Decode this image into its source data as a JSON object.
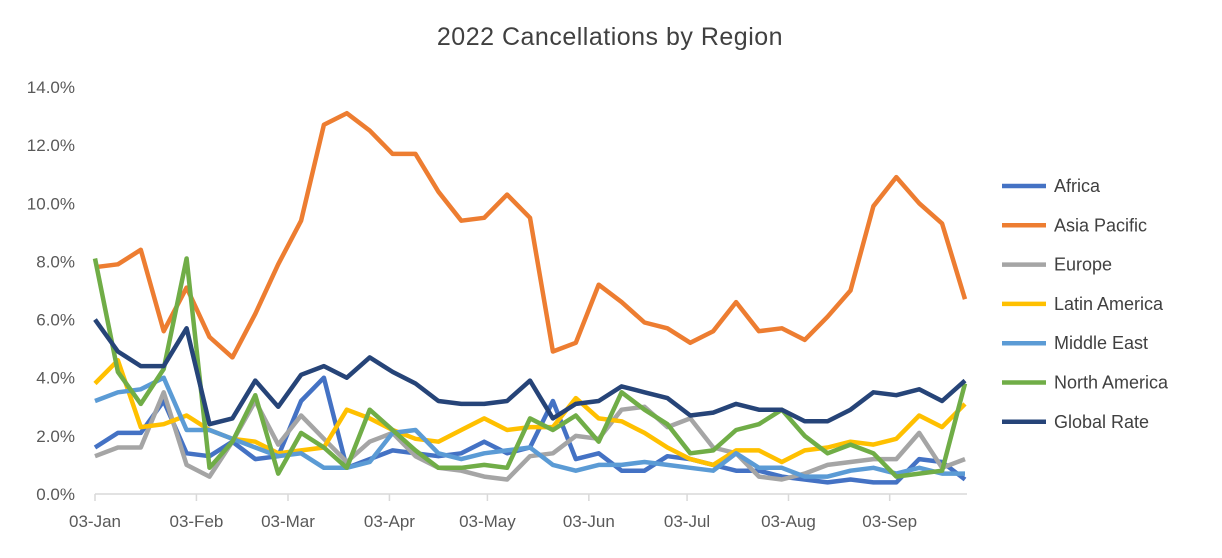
{
  "chart_data": {
    "type": "line",
    "title": "2022 Cancellations by Region",
    "xlabel": "",
    "ylabel": "",
    "ylim": [
      0,
      14
    ],
    "y_ticks": [
      "0.0%",
      "2.0%",
      "4.0%",
      "6.0%",
      "8.0%",
      "10.0%",
      "12.0%",
      "14.0%"
    ],
    "x_ticks": [
      {
        "label": "03-Jan",
        "week": 0
      },
      {
        "label": "03-Feb",
        "week": 4.43
      },
      {
        "label": "03-Mar",
        "week": 8.43
      },
      {
        "label": "03-Apr",
        "week": 12.86
      },
      {
        "label": "03-May",
        "week": 17.14
      },
      {
        "label": "03-Jun",
        "week": 21.57
      },
      {
        "label": "03-Jul",
        "week": 25.86
      },
      {
        "label": "03-Aug",
        "week": 30.29
      },
      {
        "label": "03-Sep",
        "week": 34.71
      }
    ],
    "x_unit": "weeks since 03-Jan",
    "n_points": 39,
    "grid": false,
    "legend_position": "right",
    "series": [
      {
        "name": "Africa",
        "color": "#4472C4",
        "values": [
          1.6,
          2.1,
          2.1,
          3.2,
          1.4,
          1.3,
          1.8,
          1.2,
          1.3,
          3.2,
          4.0,
          0.9,
          1.2,
          1.5,
          1.4,
          1.3,
          1.4,
          1.8,
          1.4,
          1.6,
          3.2,
          1.2,
          1.4,
          0.8,
          0.8,
          1.3,
          1.2,
          1.0,
          0.8,
          0.8,
          0.6,
          0.5,
          0.4,
          0.5,
          0.4,
          0.4,
          1.2,
          1.1,
          0.5
        ]
      },
      {
        "name": "Asia Pacific",
        "color": "#ED7D31",
        "values": [
          7.8,
          7.9,
          8.4,
          5.6,
          7.1,
          5.4,
          4.7,
          6.2,
          7.9,
          9.4,
          12.7,
          13.1,
          12.5,
          11.7,
          11.7,
          10.4,
          9.4,
          9.5,
          10.3,
          9.5,
          4.9,
          5.2,
          7.2,
          6.6,
          5.9,
          5.7,
          5.2,
          5.6,
          6.6,
          5.6,
          5.7,
          5.3,
          6.1,
          7.0,
          9.9,
          10.9,
          10.0,
          9.3,
          6.7
        ]
      },
      {
        "name": "Europe",
        "color": "#A5A5A5",
        "values": [
          1.3,
          1.6,
          1.6,
          3.5,
          1.0,
          0.6,
          1.8,
          3.2,
          1.7,
          2.7,
          1.9,
          1.1,
          1.8,
          2.1,
          1.3,
          0.9,
          0.8,
          0.6,
          0.5,
          1.3,
          1.4,
          2.0,
          1.9,
          2.9,
          3.0,
          2.3,
          2.6,
          1.6,
          1.4,
          0.6,
          0.5,
          0.7,
          1.0,
          1.1,
          1.2,
          1.2,
          2.1,
          0.9,
          1.2
        ]
      },
      {
        "name": "Latin America",
        "color": "#FFC000",
        "values": [
          3.8,
          4.6,
          2.3,
          2.4,
          2.7,
          2.2,
          1.9,
          1.8,
          1.4,
          1.5,
          1.6,
          2.9,
          2.6,
          2.2,
          1.9,
          1.8,
          2.2,
          2.6,
          2.2,
          2.3,
          2.3,
          3.3,
          2.6,
          2.5,
          2.1,
          1.6,
          1.2,
          1.0,
          1.5,
          1.5,
          1.1,
          1.5,
          1.6,
          1.8,
          1.7,
          1.9,
          2.7,
          2.3,
          3.1
        ]
      },
      {
        "name": "Middle East",
        "color": "#5B9BD5",
        "values": [
          3.2,
          3.5,
          3.6,
          4.0,
          2.2,
          2.2,
          1.9,
          1.6,
          1.3,
          1.4,
          0.9,
          0.9,
          1.1,
          2.1,
          2.2,
          1.4,
          1.2,
          1.4,
          1.5,
          1.6,
          1.0,
          0.8,
          1.0,
          1.0,
          1.1,
          1.0,
          0.9,
          0.8,
          1.4,
          0.9,
          0.9,
          0.6,
          0.6,
          0.8,
          0.9,
          0.7,
          0.9,
          0.7,
          0.7
        ]
      },
      {
        "name": "North America",
        "color": "#70AD47",
        "values": [
          8.1,
          4.2,
          3.1,
          4.3,
          8.1,
          0.9,
          1.8,
          3.4,
          0.7,
          2.1,
          1.6,
          0.9,
          2.9,
          2.2,
          1.5,
          0.9,
          0.9,
          1.0,
          0.9,
          2.6,
          2.2,
          2.7,
          1.8,
          3.5,
          2.9,
          2.4,
          1.4,
          1.5,
          2.2,
          2.4,
          2.9,
          2.0,
          1.4,
          1.7,
          1.4,
          0.6,
          0.7,
          0.8,
          3.8
        ]
      },
      {
        "name": "Global Rate",
        "color": "#264478",
        "values": [
          6.0,
          4.9,
          4.4,
          4.4,
          5.7,
          2.4,
          2.6,
          3.9,
          3.0,
          4.1,
          4.4,
          4.0,
          4.7,
          4.2,
          3.8,
          3.2,
          3.1,
          3.1,
          3.2,
          3.9,
          2.6,
          3.1,
          3.2,
          3.7,
          3.5,
          3.3,
          2.7,
          2.8,
          3.1,
          2.9,
          2.9,
          2.5,
          2.5,
          2.9,
          3.5,
          3.4,
          3.6,
          3.2,
          3.9
        ]
      }
    ]
  }
}
